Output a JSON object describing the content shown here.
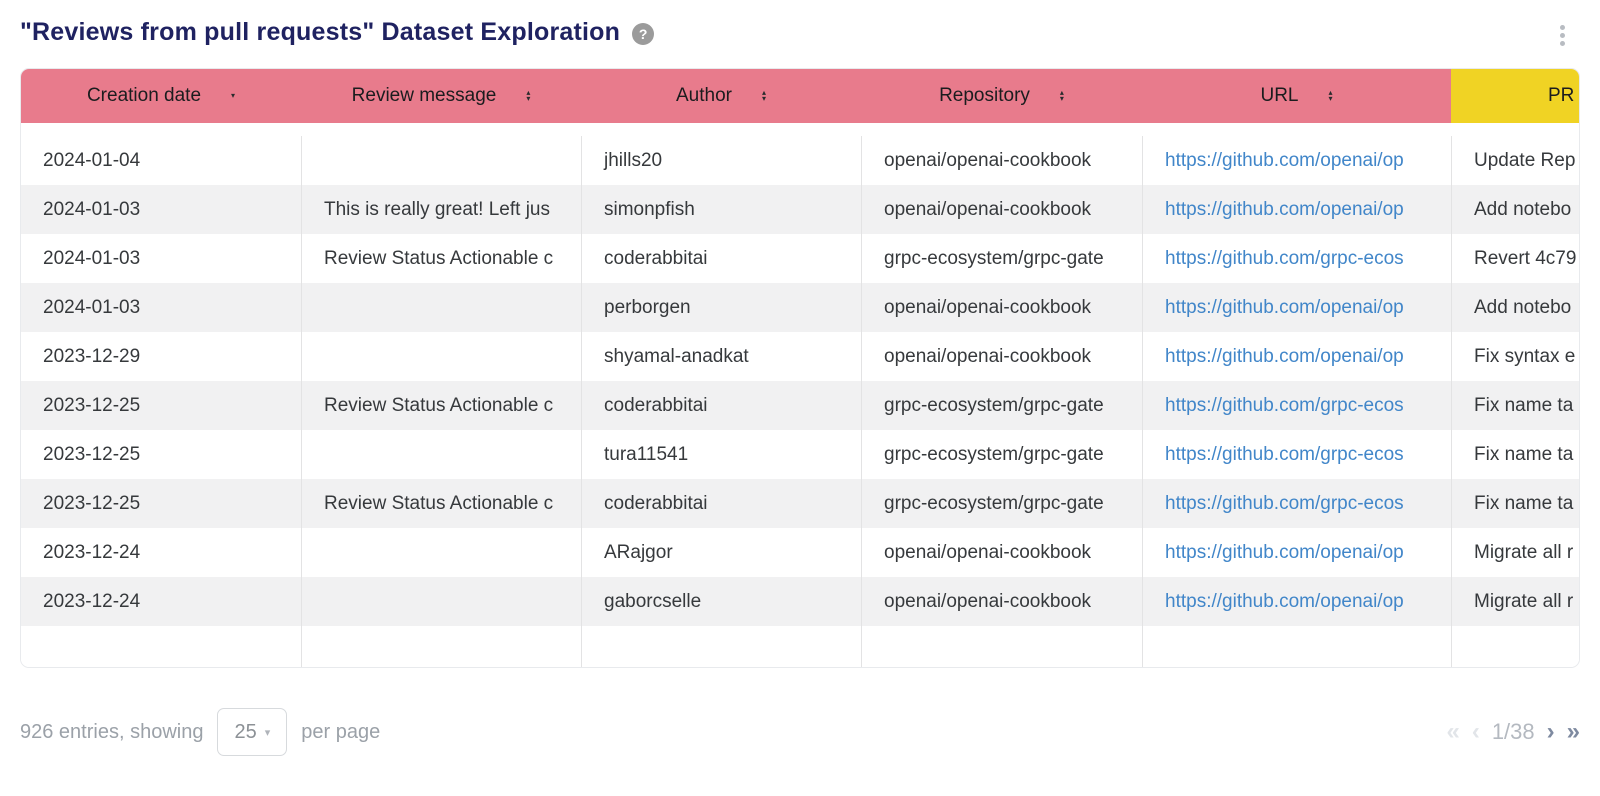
{
  "colors": {
    "title_navy": "#1f2261",
    "header_pink": "#e87b8c",
    "header_yellow": "#f0d324",
    "link_blue": "#4186c9",
    "row_stripe": "#f1f1f2"
  },
  "header": {
    "title": "\"Reviews from pull requests\" Dataset Exploration",
    "help_glyph": "?"
  },
  "icons": {
    "sort_asc": "▴",
    "sort_desc": "▾",
    "dropdown_caret": "▾"
  },
  "table": {
    "columns": [
      {
        "label": "Creation date"
      },
      {
        "label": "Review message"
      },
      {
        "label": "Author"
      },
      {
        "label": "Repository"
      },
      {
        "label": "URL"
      },
      {
        "label": "PR ti"
      }
    ],
    "rows": [
      {
        "date": "2024-01-04",
        "message": "",
        "author": "jhills20",
        "repo": "openai/openai-cookbook",
        "url": "https://github.com/openai/op",
        "pr": "Update Rep"
      },
      {
        "date": "2024-01-03",
        "message": "This is really great! Left jus",
        "author": "simonpfish",
        "repo": "openai/openai-cookbook",
        "url": "https://github.com/openai/op",
        "pr": "Add notebo"
      },
      {
        "date": "2024-01-03",
        "message": "Review Status Actionable c",
        "author": "coderabbitai",
        "repo": "grpc-ecosystem/grpc-gate",
        "url": "https://github.com/grpc-ecos",
        "pr": "Revert 4c79"
      },
      {
        "date": "2024-01-03",
        "message": "",
        "author": "perborgen",
        "repo": "openai/openai-cookbook",
        "url": "https://github.com/openai/op",
        "pr": "Add notebo"
      },
      {
        "date": "2023-12-29",
        "message": "",
        "author": "shyamal-anadkat",
        "repo": "openai/openai-cookbook",
        "url": "https://github.com/openai/op",
        "pr": "Fix syntax e"
      },
      {
        "date": "2023-12-25",
        "message": "Review Status Actionable c",
        "author": "coderabbitai",
        "repo": "grpc-ecosystem/grpc-gate",
        "url": "https://github.com/grpc-ecos",
        "pr": "Fix name ta"
      },
      {
        "date": "2023-12-25",
        "message": "",
        "author": "tura11541",
        "repo": "grpc-ecosystem/grpc-gate",
        "url": "https://github.com/grpc-ecos",
        "pr": "Fix name ta"
      },
      {
        "date": "2023-12-25",
        "message": "Review Status Actionable c",
        "author": "coderabbitai",
        "repo": "grpc-ecosystem/grpc-gate",
        "url": "https://github.com/grpc-ecos",
        "pr": "Fix name ta"
      },
      {
        "date": "2023-12-24",
        "message": "",
        "author": "ARajgor",
        "repo": "openai/openai-cookbook",
        "url": "https://github.com/openai/op",
        "pr": "Migrate all r"
      },
      {
        "date": "2023-12-24",
        "message": "",
        "author": "gaborcselle",
        "repo": "openai/openai-cookbook",
        "url": "https://github.com/openai/op",
        "pr": "Migrate all r"
      }
    ]
  },
  "footer": {
    "entries_text": "926 entries, showing",
    "page_size": "25",
    "per_page_text": "per page",
    "pagination": {
      "first": "«",
      "prev": "‹",
      "label": "1/38",
      "next": "›",
      "last": "»"
    }
  }
}
